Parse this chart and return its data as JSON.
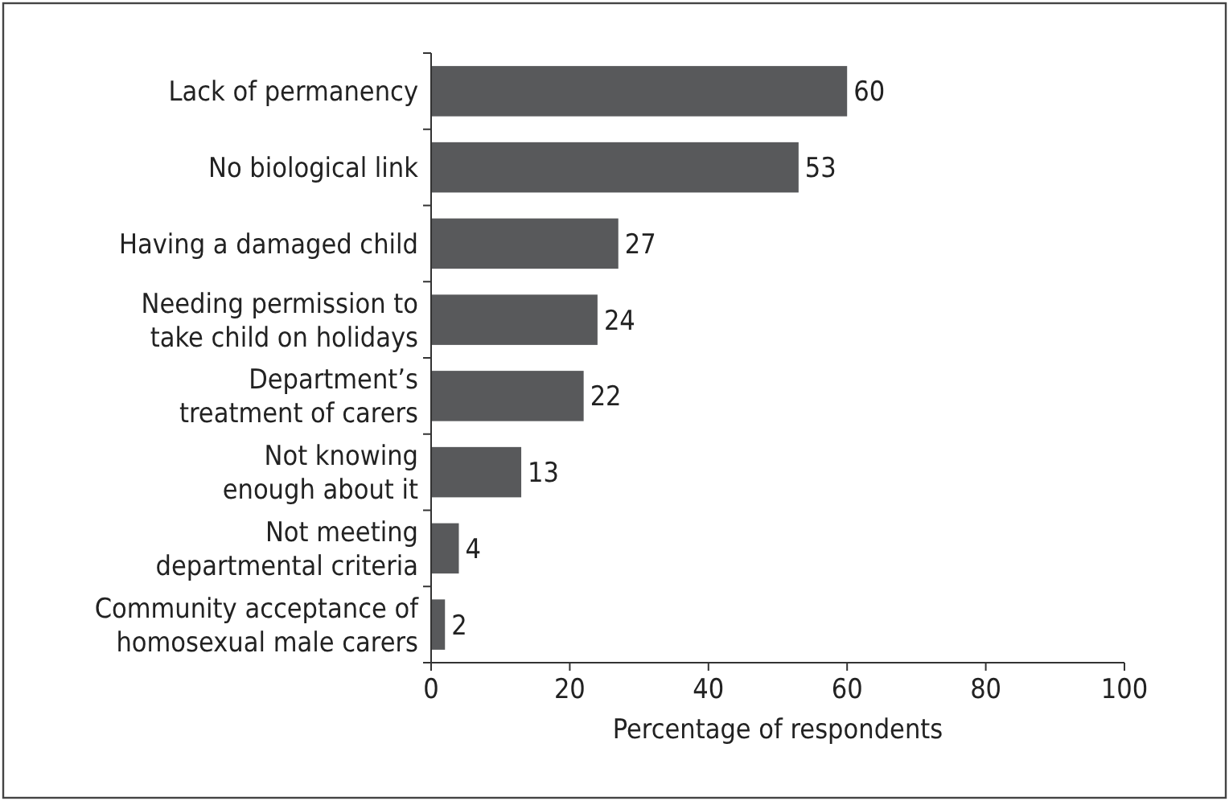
{
  "chart_data": {
    "type": "bar",
    "orientation": "horizontal",
    "xlabel": "Percentage of respondents",
    "categories": [
      "Lack of permanency",
      "No biological link",
      "Having a damaged child",
      "Needing permission to\ntake child on holidays",
      "Department’s\ntreatment of carers",
      "Not knowing\nenough about it",
      "Not meeting\ndepartmental criteria",
      "Community acceptance of\nhomosexual male carers"
    ],
    "values": [
      60,
      53,
      27,
      24,
      22,
      13,
      4,
      2
    ],
    "color": "#58595b",
    "xlim": [
      0,
      100
    ],
    "xticks": [
      0,
      20,
      40,
      60,
      80,
      100
    ],
    "data_labels": true,
    "grid": false
  }
}
